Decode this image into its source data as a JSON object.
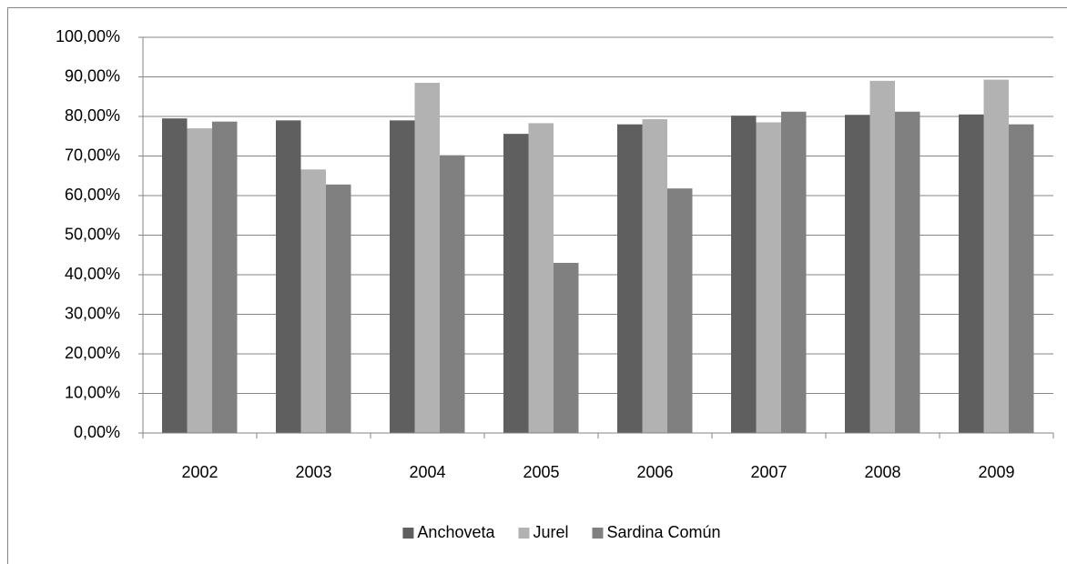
{
  "chart_data": {
    "type": "bar",
    "categories": [
      "2002",
      "2003",
      "2004",
      "2005",
      "2006",
      "2007",
      "2008",
      "2009"
    ],
    "series": [
      {
        "name": "Anchoveta",
        "color": "#5f5f5f",
        "values": [
          79.5,
          79,
          79,
          75.6,
          78,
          80.2,
          80.4,
          80.5
        ]
      },
      {
        "name": "Jurel",
        "color": "#b2b2b2",
        "values": [
          77,
          66.6,
          88.5,
          78.3,
          79.3,
          78.5,
          89,
          89.3
        ]
      },
      {
        "name": "Sardina Común",
        "color": "#808080",
        "values": [
          78.7,
          62.8,
          70.2,
          43,
          61.8,
          81.2,
          81.2,
          78
        ]
      }
    ],
    "ylim": [
      0,
      100
    ],
    "yticks": [
      {
        "value": 0,
        "label": "0,00%"
      },
      {
        "value": 10,
        "label": "10,00%"
      },
      {
        "value": 20,
        "label": "20,00%"
      },
      {
        "value": 30,
        "label": "30,00%"
      },
      {
        "value": 40,
        "label": "40,00%"
      },
      {
        "value": 50,
        "label": "50,00%"
      },
      {
        "value": 60,
        "label": "60,00%"
      },
      {
        "value": 70,
        "label": "70,00%"
      },
      {
        "value": 80,
        "label": "80,00%"
      },
      {
        "value": 90,
        "label": "90,00%"
      },
      {
        "value": 100,
        "label": "100,00%"
      }
    ],
    "grid": true,
    "legend": "bottom"
  }
}
